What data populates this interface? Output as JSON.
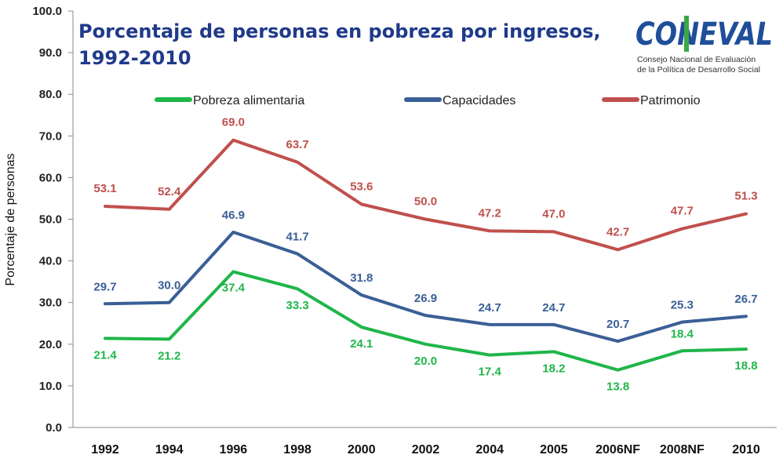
{
  "header": {
    "title_line1": "Porcentaje de personas en pobreza por ingresos,",
    "title_line2": "1992-2010"
  },
  "logo": {
    "name": "CONEVAL",
    "subtitle_line1": "Consejo Nacional de Evaluación",
    "subtitle_line2": "de la Política de Desarrollo Social",
    "colors": {
      "primary": "#1f4e9a",
      "accent": "#3aa843"
    }
  },
  "chart_data": {
    "type": "line",
    "title": "Porcentaje de personas en pobreza por ingresos, 1992-2010",
    "xlabel": "",
    "ylabel": "Porcentaje de personas",
    "ylim": [
      0,
      100
    ],
    "yticks": [
      "0.0",
      "10.0",
      "20.0",
      "30.0",
      "40.0",
      "50.0",
      "60.0",
      "70.0",
      "80.0",
      "90.0",
      "100.0"
    ],
    "categories": [
      "1992",
      "1994",
      "1996",
      "1998",
      "2000",
      "2002",
      "2004",
      "2005",
      "2006NF",
      "2008NF",
      "2010"
    ],
    "legend_position": "top",
    "grid": false,
    "series": [
      {
        "name": "Pobreza alimentaria",
        "color": "#1fb64a",
        "values": [
          21.4,
          21.2,
          37.4,
          33.3,
          24.1,
          20.0,
          17.4,
          18.2,
          13.8,
          18.4,
          18.8
        ],
        "labels": [
          "21.4",
          "21.2",
          "37.4",
          "33.3",
          "24.1",
          "20.0",
          "17.4",
          "18.2",
          "13.8",
          "18.4",
          "18.8"
        ]
      },
      {
        "name": "Capacidades",
        "color": "#3a5f96",
        "values": [
          29.7,
          30.0,
          46.9,
          41.7,
          31.8,
          26.9,
          24.7,
          24.7,
          20.7,
          25.3,
          26.7
        ],
        "labels": [
          "29.7",
          "30.0",
          "46.9",
          "41.7",
          "31.8",
          "26.9",
          "24.7",
          "24.7",
          "20.7",
          "25.3",
          "26.7"
        ]
      },
      {
        "name": "Patrimonio",
        "color": "#c0504d",
        "values": [
          53.1,
          52.4,
          69.0,
          63.7,
          53.6,
          50.0,
          47.2,
          47.0,
          42.7,
          47.7,
          51.3
        ],
        "labels": [
          "53.1",
          "52.4",
          "69.0",
          "63.7",
          "53.6",
          "50.0",
          "47.2",
          "47.0",
          "42.7",
          "47.7",
          "51.3"
        ]
      }
    ]
  }
}
